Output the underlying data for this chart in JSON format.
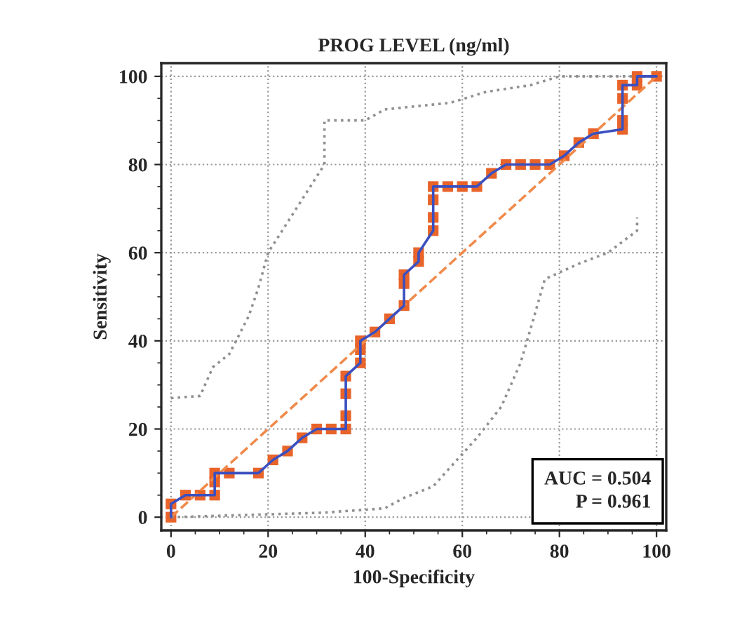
{
  "chart_data": {
    "type": "line",
    "title": "PROG LEVEL (ng/ml)",
    "xlabel": "100-Specificity",
    "ylabel": "Sensitivity",
    "xlim": [
      -2,
      102
    ],
    "ylim": [
      -3,
      103
    ],
    "xticks": [
      0,
      20,
      40,
      60,
      80,
      100
    ],
    "yticks": [
      0,
      20,
      40,
      60,
      80,
      100
    ],
    "grid": true,
    "annotations": [
      "AUC = 0.504",
      "P = 0.961"
    ],
    "series": [
      {
        "color": "#f08a4b",
        "line_style": "dashed",
        "marker": "none",
        "x": [
          0,
          100
        ],
        "values": [
          0,
          100
        ]
      },
      {
        "color": "#909090",
        "line_style": "dotted",
        "marker": "none",
        "x": [
          0,
          6,
          8.6,
          12,
          16,
          18,
          20,
          31.6,
          31.6,
          40,
          44,
          57.5,
          65,
          74,
          80,
          100
        ],
        "values": [
          27,
          27.5,
          34,
          37,
          45.6,
          52,
          60,
          80,
          90,
          90,
          92.5,
          94,
          96.5,
          98,
          100,
          100
        ]
      },
      {
        "color": "#909090",
        "line_style": "dotted",
        "marker": "none",
        "x": [
          0,
          31,
          44,
          48,
          54,
          63,
          68,
          72,
          74,
          77,
          84,
          90,
          96,
          96
        ],
        "values": [
          0,
          1,
          2,
          4.4,
          7,
          18,
          25,
          35,
          42.5,
          54,
          57.5,
          60,
          65,
          68
        ]
      },
      {
        "type": "scatter",
        "color": "#e8642a",
        "marker": "square",
        "x": [
          0,
          0,
          3,
          6,
          9,
          9,
          9,
          12,
          18,
          21,
          24,
          27,
          30,
          33,
          36,
          36,
          36,
          36,
          39,
          39,
          39,
          42,
          45,
          48,
          48,
          48,
          51,
          51,
          54,
          54,
          54,
          54,
          57,
          60,
          63,
          66,
          69,
          72,
          75,
          78,
          81,
          84,
          87,
          93,
          93,
          93,
          93,
          96,
          96,
          100
        ],
        "values": [
          0,
          3,
          5,
          5,
          5,
          8,
          10,
          10,
          10,
          13,
          15,
          18,
          20,
          20,
          20,
          23,
          28,
          32,
          35,
          38,
          40,
          42,
          45,
          48,
          53,
          55,
          58,
          60,
          65,
          68,
          72,
          75,
          75,
          75,
          75,
          78,
          80,
          80,
          80,
          80,
          82,
          85,
          87,
          88,
          90,
          95,
          98,
          98,
          100,
          100
        ]
      },
      {
        "color": "#3a50c0",
        "line_style": "solid",
        "marker": "none",
        "x": [
          0,
          0,
          3,
          6,
          9,
          9,
          9,
          12,
          18,
          21,
          24,
          27,
          30,
          33,
          36,
          36,
          36,
          36,
          39,
          39,
          39,
          42,
          45,
          48,
          48,
          48,
          51,
          51,
          54,
          54,
          54,
          54,
          57,
          60,
          63,
          66,
          69,
          72,
          75,
          78,
          81,
          84,
          87,
          93,
          93,
          93,
          93,
          96,
          96,
          100
        ],
        "values": [
          0,
          3,
          5,
          5,
          5,
          8,
          10,
          10,
          10,
          13,
          15,
          18,
          20,
          20,
          20,
          23,
          28,
          32,
          35,
          38,
          40,
          42,
          45,
          48,
          53,
          55,
          58,
          60,
          65,
          68,
          72,
          75,
          75,
          75,
          75,
          78,
          80,
          80,
          80,
          80,
          82,
          85,
          87,
          88,
          90,
          95,
          98,
          98,
          100,
          100
        ]
      }
    ]
  }
}
